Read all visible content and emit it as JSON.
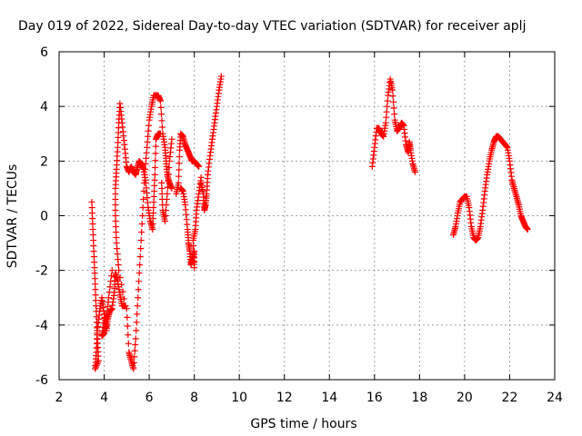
{
  "chart_data": {
    "type": "scatter",
    "title": "Day 019 of 2022, Sidereal Day-to-day VTEC variation (SDTVAR) for receiver aplj",
    "xlabel": "GPS time / hours",
    "ylabel": "SDTVAR / TECUs",
    "xlim": [
      2,
      24
    ],
    "ylim": [
      -6,
      6
    ],
    "xticks": [
      "2",
      "4",
      "6",
      "8",
      "10",
      "12",
      "14",
      "16",
      "18",
      "20",
      "22",
      "24"
    ],
    "yticks": [
      "-6",
      "-4",
      "-2",
      "0",
      "2",
      "4",
      "6"
    ],
    "grid": true,
    "marker": "+",
    "series": [
      {
        "name": "SDTVAR",
        "color": "#ff0000",
        "segments": [
          [
            [
              3.45,
              0.5
            ],
            [
              3.5,
              -0.5
            ],
            [
              3.55,
              -1.5
            ],
            [
              3.6,
              -2.5
            ],
            [
              3.65,
              -3.5
            ],
            [
              3.7,
              -4.5
            ],
            [
              3.75,
              -5.3
            ],
            [
              3.6,
              -5.6
            ],
            [
              3.65,
              -5.0
            ],
            [
              3.7,
              -4.2
            ],
            [
              3.8,
              -3.5
            ],
            [
              3.9,
              -3.0
            ],
            [
              4.0,
              -3.6
            ],
            [
              4.1,
              -4.2
            ],
            [
              4.15,
              -3.8
            ],
            [
              4.25,
              -3.5
            ],
            [
              4.35,
              -3.4
            ],
            [
              4.45,
              -2.8
            ],
            [
              4.5,
              -2.1
            ],
            [
              4.6,
              -2.4
            ],
            [
              4.7,
              -2.9
            ],
            [
              4.8,
              -3.3
            ],
            [
              4.95,
              -3.3
            ],
            [
              4.65,
              -2.0
            ],
            [
              4.55,
              -1.0
            ],
            [
              4.5,
              0.0
            ],
            [
              4.5,
              1.0
            ],
            [
              4.55,
              1.7
            ],
            [
              4.6,
              2.5
            ],
            [
              4.65,
              3.4
            ],
            [
              4.7,
              4.1
            ],
            [
              4.8,
              3.4
            ],
            [
              4.9,
              2.6
            ],
            [
              5.0,
              1.8
            ],
            [
              5.1,
              1.6
            ],
            [
              5.2,
              1.8
            ],
            [
              5.3,
              1.6
            ],
            [
              5.4,
              1.5
            ],
            [
              5.45,
              1.7
            ],
            [
              5.55,
              2.0
            ],
            [
              5.65,
              1.9
            ],
            [
              5.75,
              1.7
            ],
            [
              5.85,
              1.2
            ],
            [
              5.95,
              0.3
            ],
            [
              6.05,
              -0.2
            ],
            [
              6.15,
              -0.5
            ],
            [
              6.2,
              0.5
            ],
            [
              6.25,
              1.5
            ],
            [
              6.3,
              2.8
            ],
            [
              6.4,
              3.0
            ],
            [
              6.5,
              3.0
            ]
          ],
          [
            [
              4.35,
              -2.0
            ],
            [
              4.2,
              -3.0
            ],
            [
              4.1,
              -3.8
            ],
            [
              4.0,
              -4.3
            ],
            [
              3.9,
              -4.4
            ],
            [
              4.05,
              -3.6
            ]
          ],
          [
            [
              5.0,
              -3.4
            ],
            [
              5.1,
              -5.0
            ],
            [
              5.2,
              -5.3
            ],
            [
              5.3,
              -5.6
            ],
            [
              5.4,
              -4.5
            ],
            [
              5.5,
              -3.0
            ],
            [
              5.6,
              -1.5
            ],
            [
              5.7,
              0.0
            ],
            [
              5.8,
              1.5
            ],
            [
              5.9,
              2.5
            ],
            [
              6.0,
              3.5
            ],
            [
              6.1,
              4.0
            ],
            [
              6.2,
              4.4
            ],
            [
              6.3,
              4.4
            ],
            [
              6.4,
              4.4
            ],
            [
              6.5,
              4.2
            ],
            [
              6.6,
              3.0
            ],
            [
              6.7,
              2.5
            ],
            [
              6.75,
              2.0
            ],
            [
              6.8,
              1.5
            ],
            [
              6.9,
              1.2
            ],
            [
              7.0,
              1.0
            ]
          ],
          [
            [
              6.55,
              1.2
            ],
            [
              6.6,
              0.2
            ],
            [
              6.7,
              -0.2
            ],
            [
              6.8,
              0.8
            ],
            [
              6.9,
              2.0
            ],
            [
              7.0,
              2.8
            ]
          ],
          [
            [
              7.2,
              0.8
            ],
            [
              7.3,
              1.2
            ],
            [
              7.35,
              2.4
            ],
            [
              7.4,
              3.0
            ],
            [
              7.5,
              2.9
            ],
            [
              7.6,
              2.6
            ],
            [
              7.7,
              2.4
            ],
            [
              7.8,
              2.2
            ],
            [
              7.9,
              2.0
            ],
            [
              8.0,
              2.0
            ],
            [
              8.1,
              1.9
            ],
            [
              8.2,
              1.8
            ]
          ],
          [
            [
              7.4,
              1.0
            ],
            [
              7.5,
              0.9
            ],
            [
              7.6,
              0.4
            ],
            [
              7.7,
              -0.5
            ],
            [
              7.75,
              -1.0
            ],
            [
              7.8,
              -1.3
            ],
            [
              7.85,
              -1.8
            ],
            [
              7.9,
              -1.6
            ],
            [
              8.0,
              -1.3
            ],
            [
              8.0,
              -1.9
            ],
            [
              7.95,
              -0.9
            ],
            [
              8.05,
              -0.5
            ],
            [
              8.1,
              0.2
            ],
            [
              8.2,
              0.8
            ],
            [
              8.3,
              1.4
            ]
          ],
          [
            [
              8.3,
              1.2
            ],
            [
              8.4,
              0.8
            ],
            [
              8.45,
              0.2
            ],
            [
              8.5,
              0.4
            ],
            [
              8.55,
              0.8
            ],
            [
              8.6,
              1.5
            ],
            [
              8.7,
              2.2
            ],
            [
              8.8,
              2.8
            ],
            [
              8.9,
              3.4
            ],
            [
              9.0,
              4.0
            ],
            [
              9.1,
              4.6
            ],
            [
              9.2,
              5.1
            ]
          ],
          [
            [
              15.9,
              1.8
            ],
            [
              16.0,
              2.5
            ],
            [
              16.1,
              3.2
            ],
            [
              16.2,
              3.2
            ],
            [
              16.3,
              3.0
            ],
            [
              16.4,
              2.9
            ],
            [
              16.5,
              3.4
            ],
            [
              16.6,
              4.4
            ],
            [
              16.7,
              5.0
            ],
            [
              16.8,
              4.6
            ],
            [
              16.9,
              3.5
            ],
            [
              17.0,
              3.1
            ],
            [
              17.1,
              3.2
            ],
            [
              17.2,
              3.4
            ],
            [
              17.3,
              3.3
            ],
            [
              17.4,
              2.6
            ],
            [
              17.5,
              2.3
            ],
            [
              17.55,
              2.7
            ],
            [
              17.6,
              2.4
            ],
            [
              17.7,
              1.9
            ],
            [
              17.8,
              1.6
            ]
          ],
          [
            [
              19.5,
              -0.7
            ],
            [
              19.6,
              -0.4
            ],
            [
              19.7,
              0.1
            ],
            [
              19.8,
              0.5
            ],
            [
              19.9,
              0.6
            ],
            [
              20.0,
              0.7
            ],
            [
              20.1,
              0.7
            ],
            [
              20.2,
              0.3
            ],
            [
              20.3,
              -0.4
            ],
            [
              20.4,
              -0.8
            ],
            [
              20.5,
              -0.9
            ],
            [
              20.6,
              -0.8
            ],
            [
              20.7,
              -0.4
            ],
            [
              20.8,
              0.2
            ],
            [
              20.9,
              0.9
            ],
            [
              21.0,
              1.5
            ],
            [
              21.1,
              2.0
            ],
            [
              21.2,
              2.4
            ],
            [
              21.3,
              2.7
            ],
            [
              21.4,
              2.9
            ],
            [
              21.5,
              2.9
            ],
            [
              21.6,
              2.8
            ],
            [
              21.7,
              2.7
            ],
            [
              21.8,
              2.6
            ],
            [
              21.9,
              2.5
            ],
            [
              22.0,
              2.0
            ],
            [
              22.1,
              1.3
            ],
            [
              22.2,
              1.0
            ],
            [
              22.3,
              0.7
            ],
            [
              22.4,
              0.4
            ],
            [
              22.5,
              0.0
            ],
            [
              22.6,
              -0.2
            ],
            [
              22.7,
              -0.4
            ],
            [
              22.8,
              -0.5
            ]
          ]
        ]
      }
    ]
  }
}
